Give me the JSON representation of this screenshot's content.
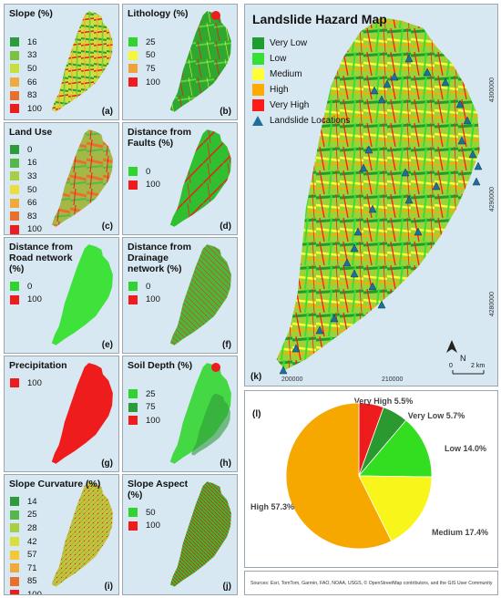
{
  "panels": [
    {
      "id": "a",
      "title": "Slope (%)",
      "items": [
        {
          "label": "16",
          "color": "#2e9b3a"
        },
        {
          "label": "33",
          "color": "#7cc241"
        },
        {
          "label": "50",
          "color": "#c9df3a"
        },
        {
          "label": "66",
          "color": "#f0a93c"
        },
        {
          "label": "83",
          "color": "#e8702c"
        },
        {
          "label": "100",
          "color": "#ee1c1c"
        }
      ],
      "panel_label": "(a)"
    },
    {
      "id": "b",
      "title": "Lithology (%)",
      "items": [
        {
          "label": "25",
          "color": "#2fd42f"
        },
        {
          "label": "50",
          "color": "#f5f53a"
        },
        {
          "label": "75",
          "color": "#f2a13a"
        },
        {
          "label": "100",
          "color": "#ee1c1c"
        }
      ],
      "panel_label": "(b)"
    },
    {
      "id": "c",
      "title": "Land Use",
      "items": [
        {
          "label": "0",
          "color": "#2e9b3a"
        },
        {
          "label": "16",
          "color": "#55b848"
        },
        {
          "label": "33",
          "color": "#a5d046"
        },
        {
          "label": "50",
          "color": "#eedc3a"
        },
        {
          "label": "66",
          "color": "#f0a93c"
        },
        {
          "label": "83",
          "color": "#e8702c"
        },
        {
          "label": "100",
          "color": "#ee1c1c"
        }
      ],
      "panel_label": "(c)"
    },
    {
      "id": "d",
      "title": "Distance from Faults (%)",
      "items": [
        {
          "label": "0",
          "color": "#2fd42f"
        },
        {
          "label": "100",
          "color": "#ee1c1c"
        }
      ],
      "panel_label": "(d)"
    },
    {
      "id": "e",
      "title": "Distance from Road network (%)",
      "items": [
        {
          "label": "0",
          "color": "#2fd42f"
        },
        {
          "label": "100",
          "color": "#ee1c1c"
        }
      ],
      "panel_label": "(e)"
    },
    {
      "id": "f",
      "title": "Distance from Drainage network (%)",
      "items": [
        {
          "label": "0",
          "color": "#2fd42f"
        },
        {
          "label": "100",
          "color": "#ee1c1c"
        }
      ],
      "panel_label": "(f)"
    },
    {
      "id": "g",
      "title": "Precipitation",
      "items": [
        {
          "label": "100",
          "color": "#ee1c1c"
        }
      ],
      "panel_label": "(g)"
    },
    {
      "id": "h",
      "title": "Soil Depth (%)",
      "items": [
        {
          "label": "25",
          "color": "#2fd42f"
        },
        {
          "label": "75",
          "color": "#2e9b3a"
        },
        {
          "label": "100",
          "color": "#ee1c1c"
        }
      ],
      "panel_label": "(h)"
    },
    {
      "id": "i",
      "title": "Slope Curvature (%)",
      "items": [
        {
          "label": "14",
          "color": "#2e9b3a"
        },
        {
          "label": "25",
          "color": "#55b848"
        },
        {
          "label": "28",
          "color": "#a5d046"
        },
        {
          "label": "42",
          "color": "#d8df3a"
        },
        {
          "label": "57",
          "color": "#f3c93a"
        },
        {
          "label": "71",
          "color": "#f0a93c"
        },
        {
          "label": "85",
          "color": "#e8702c"
        },
        {
          "label": "100",
          "color": "#ee1c1c"
        }
      ],
      "panel_label": "(i)"
    },
    {
      "id": "j",
      "title": "Slope Aspect (%)",
      "items": [
        {
          "label": "50",
          "color": "#2fd42f"
        },
        {
          "label": "100",
          "color": "#ee1c1c"
        }
      ],
      "panel_label": "(j)"
    }
  ],
  "hazard_map": {
    "title": "Landslide Hazard Map",
    "legend": [
      {
        "label": "Very Low",
        "color": "#1e9e2e"
      },
      {
        "label": "Low",
        "color": "#35e035"
      },
      {
        "label": "Medium",
        "color": "#ffff33"
      },
      {
        "label": "High",
        "color": "#ffaa00"
      },
      {
        "label": "Very High",
        "color": "#ff1a1a"
      }
    ],
    "points_label": "Landslide Locations",
    "y_ticks": [
      "4300000",
      "4290000",
      "4280000"
    ],
    "x_ticks": [
      "200000",
      "210000"
    ],
    "north": "N",
    "scale_zero": "0",
    "scale_label": "2 km",
    "panel_label": "(k)"
  },
  "chart_data": {
    "type": "pie",
    "title": "",
    "panel_label": "(l)",
    "slices": [
      {
        "label": "Very High",
        "value": 5.5,
        "text": "Very High 5.5%",
        "color": "#ee1c1c"
      },
      {
        "label": "Very Low",
        "value": 5.7,
        "text": "Very Low 5.7%",
        "color": "#2a9a30"
      },
      {
        "label": "Low",
        "value": 14.0,
        "text": "Low 14.0%",
        "color": "#33dd1f"
      },
      {
        "label": "Medium",
        "value": 17.4,
        "text": "Medium 17.4%",
        "color": "#f7f51a"
      },
      {
        "label": "High",
        "value": 57.3,
        "text": "High 57.3%",
        "color": "#f7a800"
      }
    ]
  },
  "credits": "Sources: Esri, TomTom, Garmin, FAO, NOAA, USGS, © OpenStreetMap contributors, and the GIS User Community"
}
